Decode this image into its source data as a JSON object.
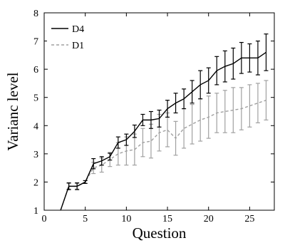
{
  "chart_data": {
    "type": "line",
    "xlabel": "Question",
    "ylabel": "Varianc level",
    "xlim": [
      0,
      28
    ],
    "ylim": [
      1,
      8
    ],
    "x_ticks": [
      0,
      5,
      10,
      15,
      20,
      25
    ],
    "y_ticks": [
      1,
      2,
      3,
      4,
      5,
      6,
      7,
      8
    ],
    "grid": false,
    "legend_position": "top-left",
    "series": [
      {
        "name": "D4",
        "color": "#000000",
        "style": "solid",
        "x": [
          2,
          3,
          4,
          5,
          6,
          7,
          8,
          9,
          10,
          11,
          12,
          13,
          14,
          15,
          16,
          17,
          18,
          19,
          20,
          21,
          22,
          23,
          24,
          25,
          26,
          27
        ],
        "y": [
          1.0,
          1.85,
          1.85,
          2.0,
          2.65,
          2.75,
          2.9,
          3.4,
          3.5,
          3.8,
          4.2,
          4.2,
          4.25,
          4.6,
          4.8,
          4.95,
          5.2,
          5.45,
          5.6,
          5.95,
          6.1,
          6.2,
          6.4,
          6.4,
          6.4,
          6.6
        ],
        "error": [
          0.0,
          0.12,
          0.12,
          0.05,
          0.18,
          0.15,
          0.12,
          0.2,
          0.2,
          0.22,
          0.2,
          0.3,
          0.3,
          0.3,
          0.35,
          0.35,
          0.4,
          0.5,
          0.45,
          0.5,
          0.55,
          0.55,
          0.55,
          0.5,
          0.6,
          0.65
        ]
      },
      {
        "name": "D1",
        "color": "#a0a0a0",
        "style": "dashed",
        "x": [
          2,
          3,
          4,
          5,
          6,
          7,
          8,
          9,
          10,
          11,
          12,
          13,
          14,
          15,
          16,
          17,
          18,
          19,
          20,
          21,
          22,
          23,
          24,
          25,
          26,
          27
        ],
        "y": [
          1.0,
          1.85,
          1.85,
          2.0,
          2.5,
          2.6,
          2.8,
          3.0,
          3.1,
          3.15,
          3.4,
          3.45,
          3.75,
          3.85,
          3.55,
          3.9,
          4.05,
          4.2,
          4.3,
          4.45,
          4.5,
          4.55,
          4.6,
          4.7,
          4.8,
          4.9
        ],
        "error": [
          0.0,
          0.1,
          0.1,
          0.05,
          0.2,
          0.25,
          0.25,
          0.4,
          0.5,
          0.55,
          0.5,
          0.6,
          0.65,
          0.6,
          0.6,
          0.7,
          0.7,
          0.75,
          0.75,
          0.7,
          0.75,
          0.8,
          0.75,
          0.75,
          0.7,
          0.7
        ]
      }
    ]
  }
}
